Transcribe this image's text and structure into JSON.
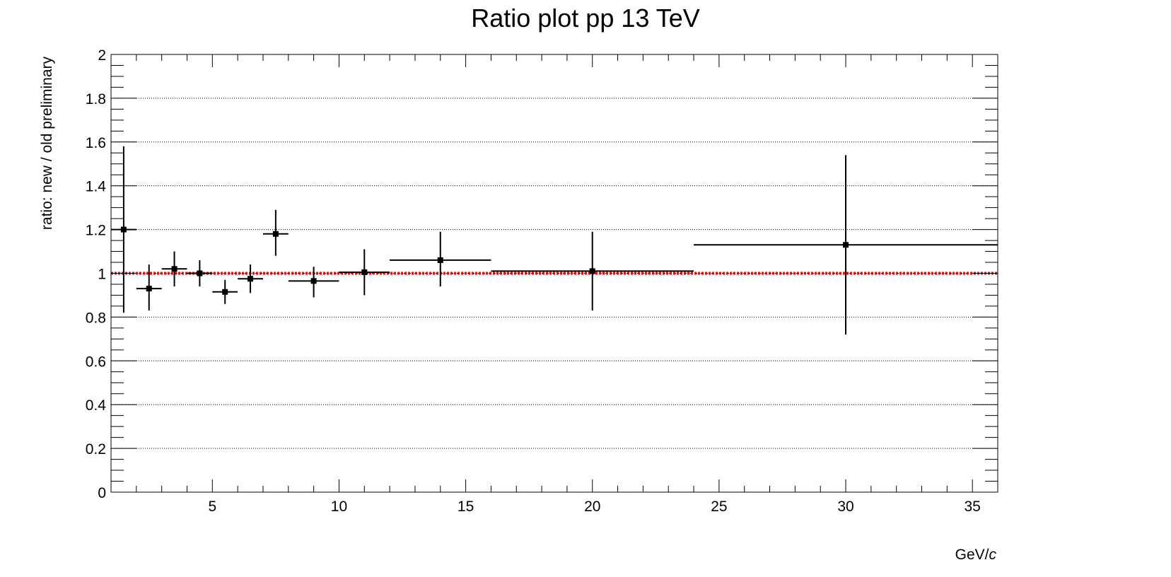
{
  "chart_data": {
    "type": "scatter",
    "title": "Ratio plot pp 13 TeV",
    "xlabel": "GeV/",
    "xlabel_italic": "c",
    "ylabel": "ratio: new / old preliminary",
    "xlim": [
      1,
      36
    ],
    "ylim": [
      0,
      2
    ],
    "x_ticks": [
      5,
      10,
      15,
      20,
      25,
      30,
      35
    ],
    "y_ticks": [
      0,
      0.2,
      0.4,
      0.6,
      0.8,
      1,
      1.2,
      1.4,
      1.6,
      1.8,
      2
    ],
    "y_tick_labels": [
      "0",
      "0.2",
      "0.4",
      "0.6",
      "0.8",
      "1",
      "1.2",
      "1.4",
      "1.6",
      "1.8",
      "2"
    ],
    "x_tick_labels": [
      "5",
      "10",
      "15",
      "20",
      "25",
      "30",
      "35"
    ],
    "grid": "horizontal-dotted",
    "reference_line": {
      "y": 1.0,
      "color": "#ff0000",
      "style": "dotted"
    },
    "marker_color": "#000000",
    "points": [
      {
        "x": 1.5,
        "xlo": 1,
        "xhi": 2,
        "y": 1.2,
        "ylo": 0.82,
        "yhi": 1.58
      },
      {
        "x": 2.5,
        "xlo": 2,
        "xhi": 3,
        "y": 0.93,
        "ylo": 0.83,
        "yhi": 1.04
      },
      {
        "x": 3.5,
        "xlo": 3,
        "xhi": 4,
        "y": 1.02,
        "ylo": 0.94,
        "yhi": 1.1
      },
      {
        "x": 4.5,
        "xlo": 4,
        "xhi": 5,
        "y": 1.0,
        "ylo": 0.94,
        "yhi": 1.06
      },
      {
        "x": 5.5,
        "xlo": 5,
        "xhi": 6,
        "y": 0.915,
        "ylo": 0.86,
        "yhi": 0.97
      },
      {
        "x": 6.5,
        "xlo": 6,
        "xhi": 7,
        "y": 0.975,
        "ylo": 0.91,
        "yhi": 1.04
      },
      {
        "x": 7.5,
        "xlo": 7,
        "xhi": 8,
        "y": 1.18,
        "ylo": 1.08,
        "yhi": 1.29
      },
      {
        "x": 9,
        "xlo": 8,
        "xhi": 10,
        "y": 0.965,
        "ylo": 0.89,
        "yhi": 1.03
      },
      {
        "x": 11,
        "xlo": 10,
        "xhi": 12,
        "y": 1.005,
        "ylo": 0.9,
        "yhi": 1.11
      },
      {
        "x": 14,
        "xlo": 12,
        "xhi": 16,
        "y": 1.06,
        "ylo": 0.94,
        "yhi": 1.19
      },
      {
        "x": 20,
        "xlo": 16,
        "xhi": 24,
        "y": 1.01,
        "ylo": 0.83,
        "yhi": 1.19
      },
      {
        "x": 30,
        "xlo": 24,
        "xhi": 36,
        "y": 1.13,
        "ylo": 0.72,
        "yhi": 1.54
      }
    ]
  }
}
